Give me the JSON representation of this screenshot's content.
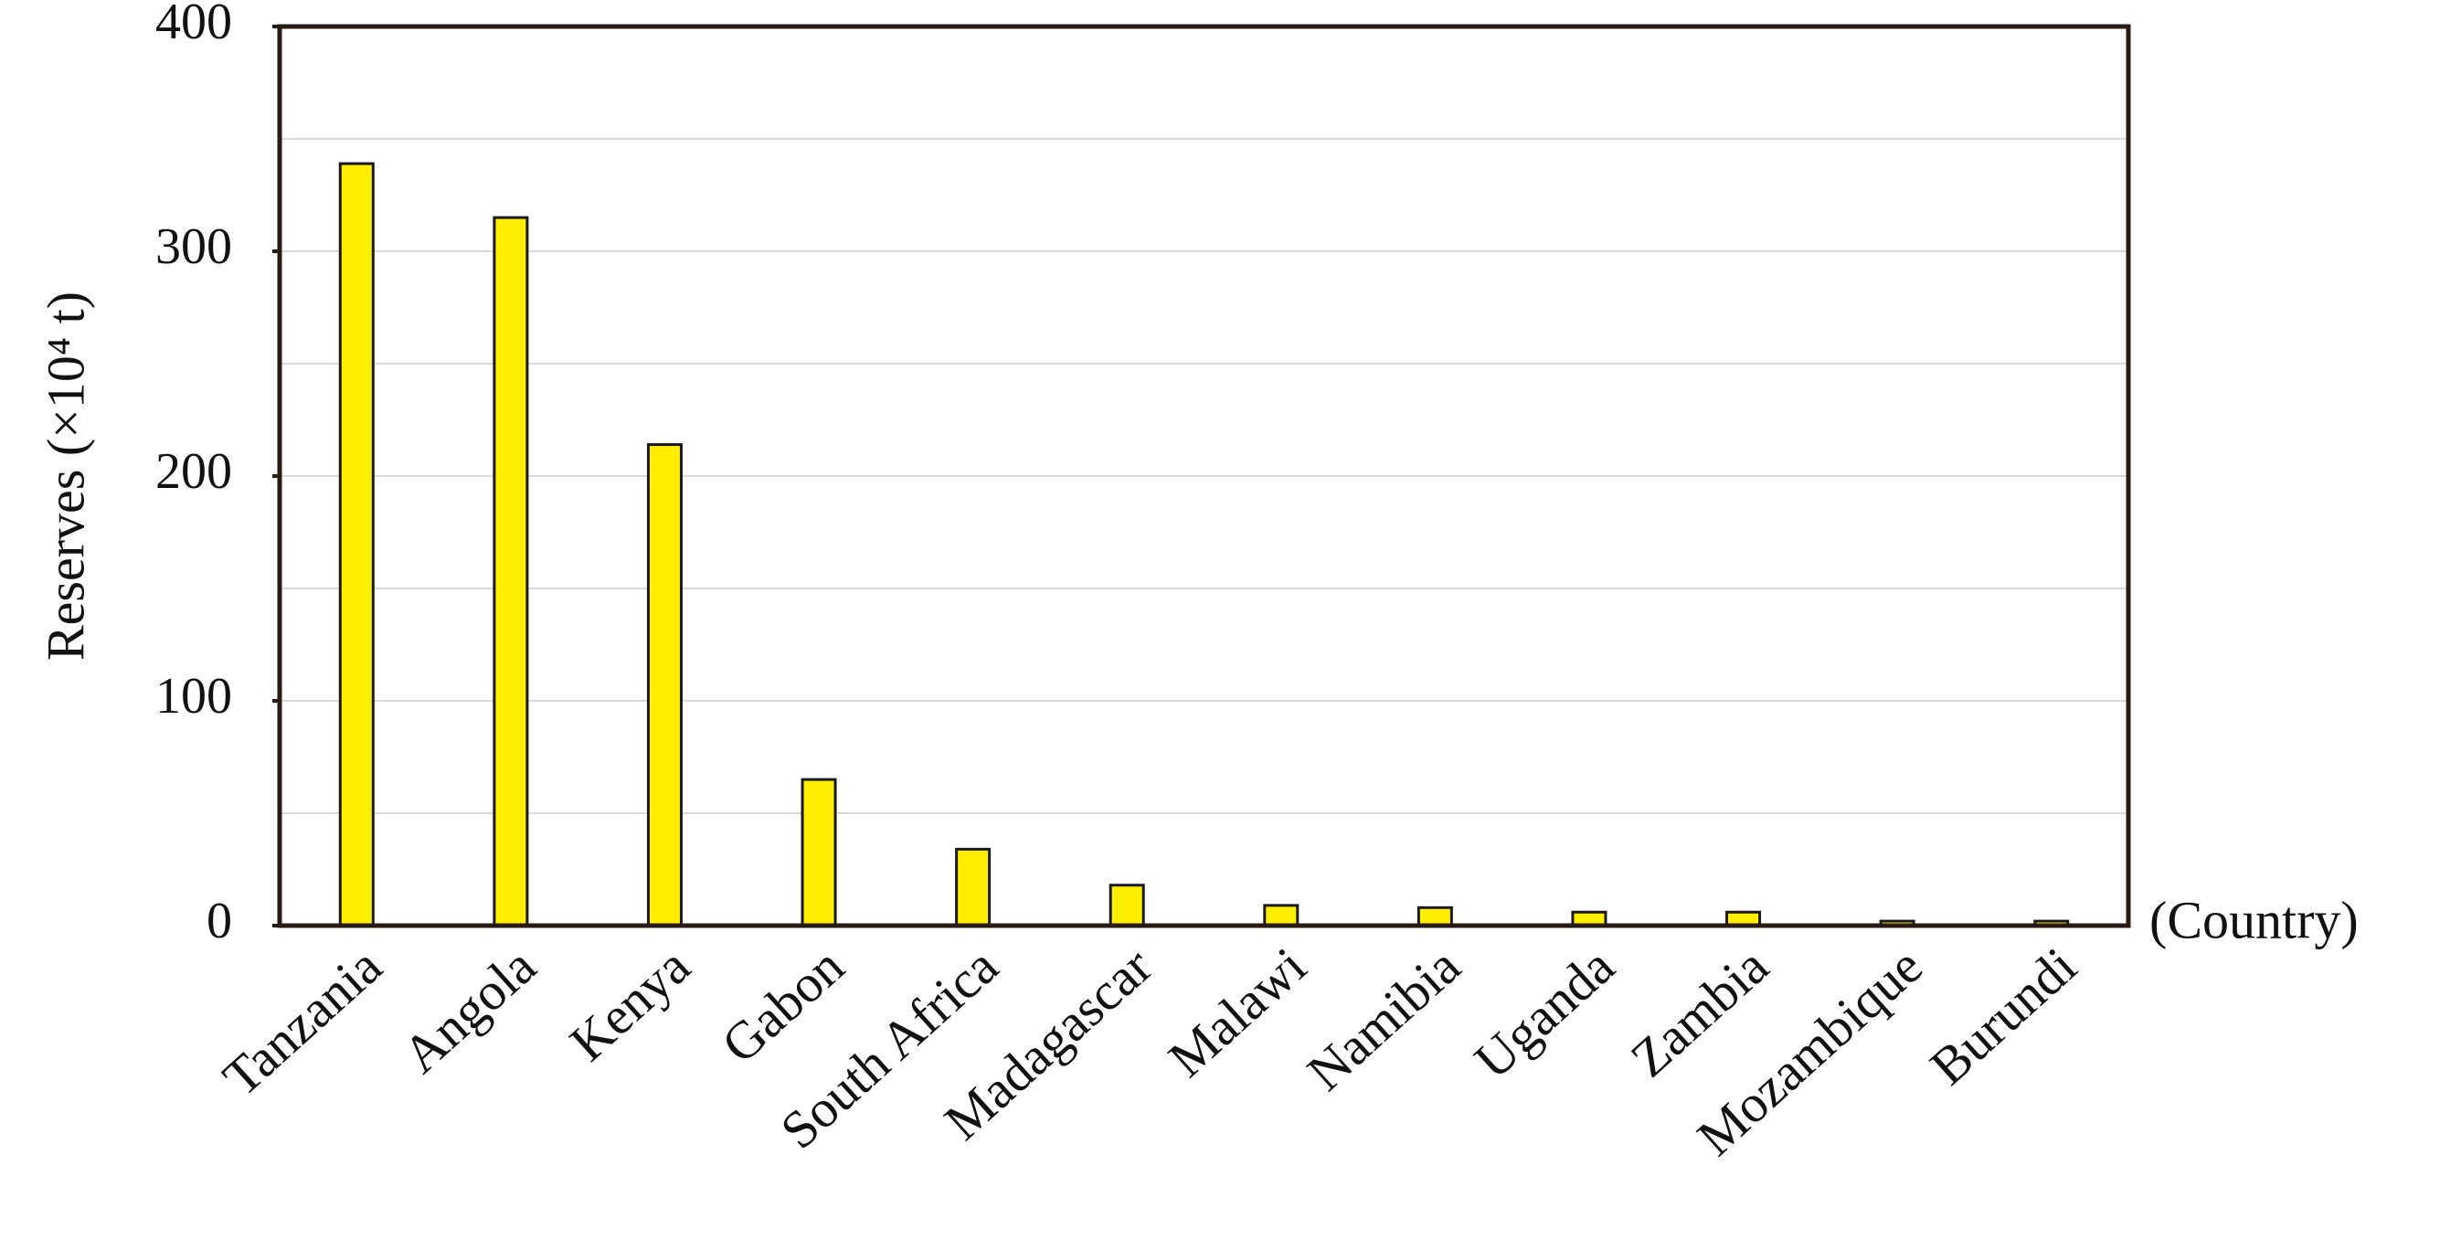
{
  "chart_data": {
    "type": "bar",
    "ylabel": "Reserves (×10⁴ t)",
    "xlabel": "(Country)",
    "categories": [
      "Tanzania",
      "Angola",
      "Kenya",
      "Gabon",
      "South Africa",
      "Madagascar",
      "Malawi",
      "Namibia",
      "Uganda",
      "Zambia",
      "Mozambique",
      "Burundi"
    ],
    "values": [
      339,
      315,
      214,
      65,
      34,
      18,
      9,
      8,
      6,
      6,
      2,
      2
    ],
    "color": "#ffee00",
    "ylim": [
      0,
      400
    ],
    "yticks": [
      0,
      100,
      200,
      300,
      400
    ],
    "grid_lines": [
      50,
      100,
      150,
      200,
      250,
      300,
      350
    ],
    "grid": true
  }
}
